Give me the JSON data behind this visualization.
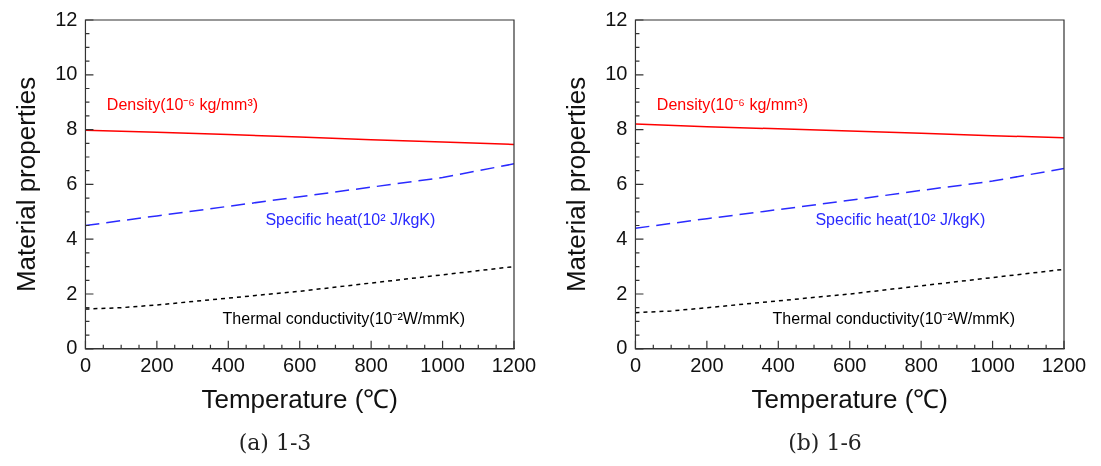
{
  "chart_data": [
    {
      "type": "line",
      "xlabel": "Temperature (℃)",
      "ylabel": "Material properties",
      "annotations": [
        "(a)  1-3"
      ],
      "xlim": [
        0,
        1200
      ],
      "xticks": [
        0,
        200,
        400,
        600,
        800,
        1000,
        1200
      ],
      "ylim": [
        0,
        12
      ],
      "yticks": [
        0,
        2,
        4,
        6,
        8,
        10,
        12
      ],
      "grid": false,
      "legend": false,
      "marker": "none",
      "series": [
        {
          "name": "Density(10⁻⁶ kg/mm³)",
          "color": "#ff0000",
          "line_style": "solid",
          "x": [
            0,
            200,
            400,
            600,
            800,
            1000,
            1200
          ],
          "values": [
            7.98,
            7.9,
            7.82,
            7.73,
            7.63,
            7.55,
            7.46
          ]
        },
        {
          "name": "Specific heat(10² J/kgK)",
          "color": "#2a2aff",
          "line_style": "dashed",
          "x": [
            0,
            200,
            400,
            600,
            800,
            1000,
            1200
          ],
          "values": [
            4.5,
            4.85,
            5.2,
            5.55,
            5.9,
            6.25,
            6.75
          ]
        },
        {
          "name": "Thermal conductivity(10⁻²W/mmK)",
          "color": "#000000",
          "line_style": "dotted",
          "x": [
            0,
            100,
            200,
            400,
            600,
            800,
            1000,
            1200
          ],
          "values": [
            1.45,
            1.5,
            1.6,
            1.85,
            2.1,
            2.4,
            2.7,
            3.0
          ]
        }
      ]
    },
    {
      "type": "line",
      "xlabel": "Temperature (℃)",
      "ylabel": "Material properties",
      "annotations": [
        "(b)  1-6"
      ],
      "xlim": [
        0,
        1200
      ],
      "xticks": [
        0,
        200,
        400,
        600,
        800,
        1000,
        1200
      ],
      "ylim": [
        0,
        12
      ],
      "yticks": [
        0,
        2,
        4,
        6,
        8,
        10,
        12
      ],
      "grid": false,
      "legend": false,
      "marker": "none",
      "series": [
        {
          "name": "Density(10⁻⁶ kg/mm³)",
          "color": "#ff0000",
          "line_style": "solid",
          "x": [
            0,
            200,
            400,
            600,
            800,
            1000,
            1200
          ],
          "values": [
            8.2,
            8.1,
            8.03,
            7.95,
            7.87,
            7.78,
            7.7
          ]
        },
        {
          "name": "Specific heat(10² J/kgK)",
          "color": "#2a2aff",
          "line_style": "dashed",
          "x": [
            0,
            200,
            400,
            600,
            800,
            1000,
            1200
          ],
          "values": [
            4.4,
            4.75,
            5.08,
            5.42,
            5.78,
            6.12,
            6.58
          ]
        },
        {
          "name": "Thermal conductivity(10⁻²W/mmK)",
          "color": "#000000",
          "line_style": "dotted",
          "x": [
            0,
            100,
            200,
            400,
            600,
            800,
            1000,
            1200
          ],
          "values": [
            1.32,
            1.38,
            1.5,
            1.75,
            2.0,
            2.3,
            2.6,
            2.9
          ]
        }
      ]
    }
  ]
}
